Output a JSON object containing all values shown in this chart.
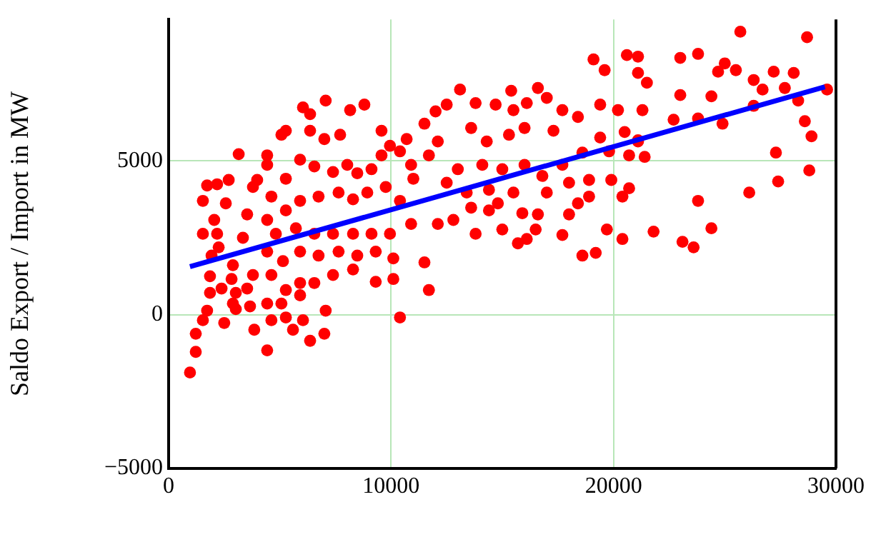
{
  "chart_data": {
    "type": "scatter",
    "ylabel": "Saldo Export / Import in MW",
    "xlim": [
      0,
      30000
    ],
    "xticks": [
      0,
      10000,
      20000,
      30000
    ],
    "ylim": [
      -5000,
      9600
    ],
    "yticks": [
      {
        "value": -5000,
        "label": "−5000"
      },
      0,
      5000
    ],
    "grid": true,
    "marker": "circle",
    "series": [
      {
        "color": "#ff0000",
        "x": [
          960,
          1220,
          1220,
          1540,
          1730,
          1860,
          1860,
          1540,
          1540,
          1730,
          2180,
          2700,
          2570,
          2050,
          2180,
          2250,
          1930,
          2380,
          2500,
          2890,
          3020,
          2830,
          2890,
          3340,
          3530,
          3790,
          3150,
          4430,
          5070,
          5270,
          6040,
          6360,
          7060,
          6360,
          7000,
          7710,
          8160,
          8800,
          9570,
          9950,
          10700,
          4430,
          3980,
          4620,
          5270,
          5910,
          6550,
          7390,
          8030,
          8480,
          9120,
          9570,
          4430,
          5270,
          5910,
          6740,
          7640,
          8290,
          8930,
          9760,
          10400,
          4820,
          5720,
          6550,
          7390,
          8290,
          9120,
          9950,
          10900,
          4430,
          5140,
          5910,
          6740,
          7640,
          8480,
          9310,
          10100,
          3790,
          4620,
          5270,
          5910,
          6550,
          7390,
          8290,
          9310,
          10100,
          3530,
          3020,
          3660,
          4430,
          5070,
          5910,
          5270,
          3850,
          4620,
          5590,
          6040,
          6360,
          7000,
          4430,
          7060,
          10400,
          11700,
          11500,
          12100,
          12800,
          13600,
          14400,
          14800,
          15900,
          16600,
          18000,
          18400,
          18900,
          20400,
          19900,
          18900,
          18000,
          17000,
          15500,
          14400,
          13400,
          12500,
          11000,
          10900,
          11700,
          12100,
          11500,
          12000,
          12500,
          13800,
          14700,
          15500,
          16100,
          17000,
          17700,
          18400,
          19400,
          20200,
          21300,
          21500,
          21100,
          13600,
          14300,
          15300,
          16000,
          17300,
          14100,
          15000,
          16000,
          16800,
          17700,
          18600,
          19800,
          20700,
          21100,
          20500,
          19400,
          13000,
          10400,
          13100,
          15400,
          16600,
          19100,
          20600,
          19600,
          18600,
          19200,
          19700,
          20400,
          17700,
          16100,
          15700,
          16500,
          15000,
          13800,
          23800,
          21800,
          23100,
          23600,
          24400,
          26100,
          27400,
          28800,
          27300,
          28900,
          28600,
          28300,
          29600,
          28700,
          25700,
          26300,
          24900,
          23800,
          23800,
          23000,
          25000,
          25500,
          24700,
          26300,
          27200,
          28100,
          26700,
          27700,
          24400,
          23000,
          22700,
          21100,
          21400,
          20700,
          21100
        ],
        "values": [
          -1880,
          -1210,
          -620,
          -180,
          130,
          710,
          1250,
          2630,
          3700,
          4200,
          4240,
          4380,
          3620,
          3080,
          2630,
          2190,
          1920,
          850,
          -270,
          360,
          710,
          1160,
          1610,
          2500,
          3260,
          4150,
          5220,
          5180,
          5850,
          5980,
          6740,
          6520,
          6960,
          5980,
          5710,
          5850,
          6650,
          6830,
          5980,
          5490,
          5710,
          4870,
          4380,
          3840,
          4420,
          5040,
          4820,
          4640,
          4870,
          4600,
          4730,
          5180,
          3080,
          3390,
          3700,
          3840,
          3970,
          3750,
          3970,
          4150,
          3700,
          2630,
          2810,
          2630,
          2630,
          2630,
          2630,
          2630,
          2950,
          2050,
          1740,
          2050,
          1920,
          2050,
          1920,
          2050,
          1830,
          1290,
          1290,
          800,
          1030,
          1030,
          1290,
          1470,
          1070,
          1160,
          850,
          180,
          270,
          360,
          360,
          630,
          -90,
          -490,
          -180,
          -490,
          -180,
          -850,
          -620,
          -1160,
          130,
          -90,
          800,
          1700,
          2950,
          3080,
          3480,
          3390,
          3620,
          3300,
          3260,
          3260,
          3620,
          3840,
          3840,
          4380,
          4380,
          4290,
          3970,
          3970,
          4060,
          3970,
          4290,
          4420,
          4870,
          5180,
          5630,
          6210,
          6610,
          6830,
          6880,
          6830,
          6650,
          6880,
          7050,
          6650,
          6430,
          6830,
          6650,
          6650,
          7540,
          7860,
          6070,
          5630,
          5850,
          6070,
          5980,
          4870,
          4730,
          4870,
          4510,
          4870,
          5270,
          5310,
          5180,
          5630,
          5940,
          5760,
          4730,
          5310,
          7320,
          7280,
          7370,
          8300,
          8440,
          7950,
          1920,
          2010,
          2770,
          2460,
          2590,
          2460,
          2320,
          2770,
          2770,
          2630,
          3700,
          2700,
          2370,
          2190,
          2810,
          3970,
          4330,
          4690,
          5270,
          5800,
          6290,
          6960,
          7320,
          9020,
          9200,
          6790,
          6210,
          6380,
          8480,
          8350,
          8170,
          7950,
          7900,
          7630,
          7900,
          7860,
          7320,
          7370,
          7100,
          7140,
          6340,
          5670,
          5130,
          4110,
          8390
        ]
      },
      {
        "type": "line",
        "marker": "none",
        "color": "#0000ff",
        "x": [
          960,
          29500
        ],
        "values": [
          1560,
          7410
        ]
      }
    ]
  }
}
